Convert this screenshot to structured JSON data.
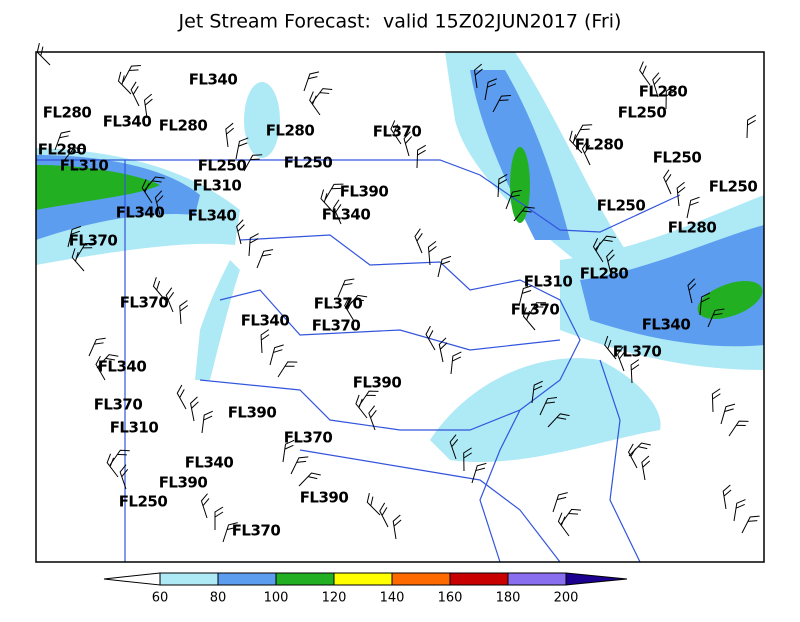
{
  "title": "Jet Stream Forecast:  valid 15Z02JUN2017 (Fri)",
  "flight_levels": [
    "FL340",
    "FL280",
    "FL340",
    "FL280",
    "FL280",
    "FL370",
    "FL280",
    "FL250",
    "FL280",
    "FL250",
    "FL250",
    "FL280",
    "FL310",
    "FL250",
    "FL250",
    "FL310",
    "FL390",
    "FL250",
    "FL340",
    "FL340",
    "FL340",
    "FL280",
    "FL370",
    "FL310",
    "FL280",
    "FL370",
    "FL370",
    "FL370",
    "FL340",
    "FL370",
    "FL340",
    "FL370",
    "FL340",
    "FL390",
    "FL370",
    "FL390",
    "FL310",
    "FL370",
    "FL340",
    "FL390",
    "FL250",
    "FL390",
    "FL370"
  ],
  "colorbar": {
    "ticks": [
      60,
      80,
      100,
      120,
      140,
      160,
      180,
      200
    ],
    "colors": [
      "#ffffff",
      "#aee9f6",
      "#5c9df0",
      "#22b022",
      "#ffff00",
      "#ff6a00",
      "#c80000",
      "#8a6ef0",
      "#1c0090"
    ]
  }
}
